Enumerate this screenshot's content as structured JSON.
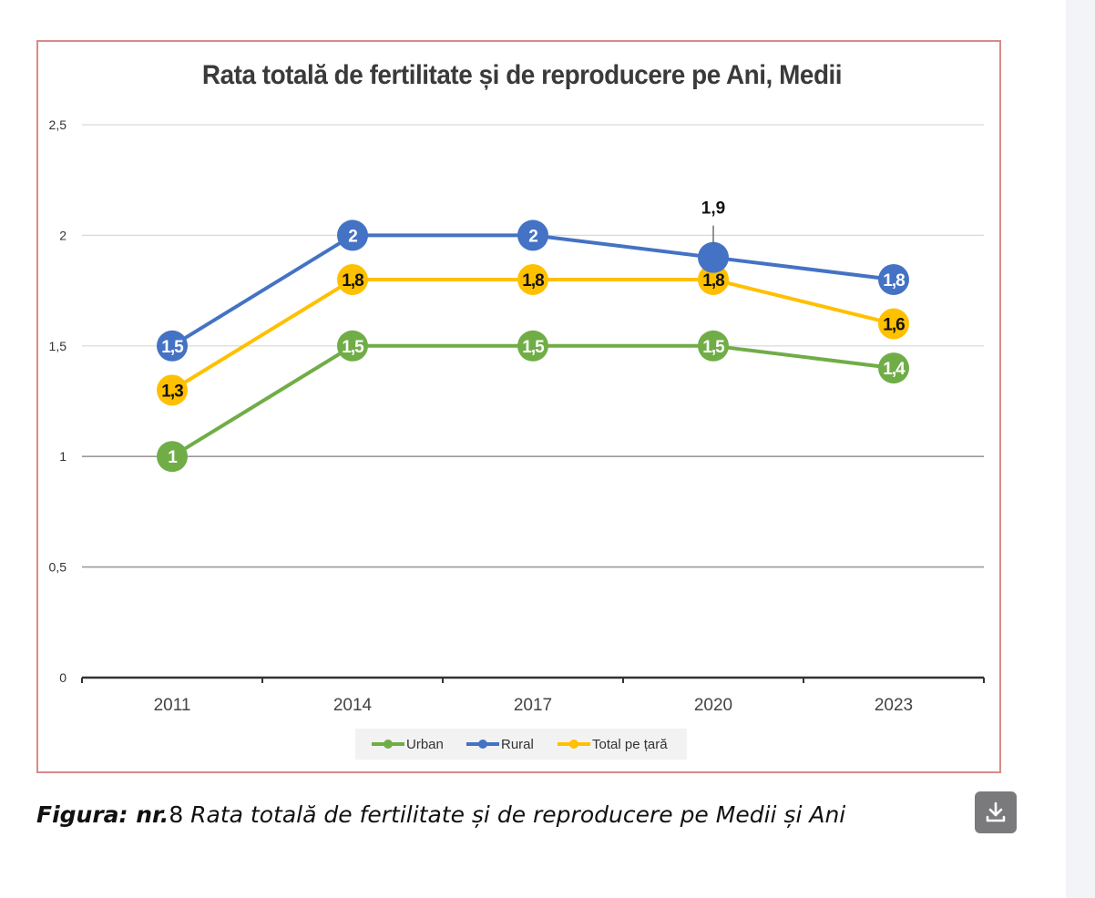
{
  "chart_data": {
    "type": "line",
    "title": "Rata totală de fertilitate și de reproducere pe Ani, Medii",
    "categories": [
      "2011",
      "2014",
      "2017",
      "2020",
      "2023"
    ],
    "y_ticks": [
      "0",
      "0,5",
      "1",
      "1,5",
      "2",
      "2,5"
    ],
    "ylim": [
      0,
      2.5
    ],
    "grid": true,
    "legend_position": "bottom",
    "series": [
      {
        "name": "Urban",
        "color": "#70ad47",
        "values": [
          1,
          1.5,
          1.5,
          1.5,
          1.4
        ],
        "labels": [
          "1",
          "1,5",
          "1,5",
          "1,5",
          "1,4"
        ],
        "label_color": "#ffffff"
      },
      {
        "name": "Rural",
        "color": "#4472c4",
        "values": [
          1.5,
          2,
          2,
          1.9,
          1.8
        ],
        "labels": [
          "1,5",
          "2",
          "2",
          "1,9",
          "1,8"
        ],
        "label_color": "#ffffff"
      },
      {
        "name": "Total pe țară",
        "color": "#ffc000",
        "values": [
          1.3,
          1.8,
          1.8,
          1.8,
          1.6
        ],
        "labels": [
          "1,3",
          "1,8",
          "1,8",
          "1,8",
          "1,6"
        ],
        "label_color": "#111111"
      }
    ],
    "legend": [
      "Urban",
      "Rural",
      "Total pe țară"
    ]
  },
  "caption": {
    "bold": "Figura: nr.",
    "number": "8",
    "text": " Rata totală de fertilitate și de reproducere pe Medii și Ani"
  },
  "download_button": {
    "icon": "download-icon"
  }
}
